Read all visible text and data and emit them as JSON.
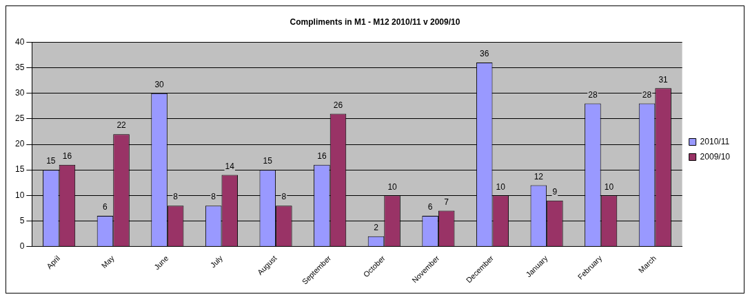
{
  "chart_data": {
    "type": "bar",
    "title": "Compliments in M1 - M12 2010/11 v 2009/10",
    "categories": [
      "April",
      "May",
      "June",
      "July",
      "August",
      "September",
      "October",
      "November",
      "December",
      "January",
      "February",
      "March"
    ],
    "series": [
      {
        "name": "2010/11",
        "color": "#9999ff",
        "values": [
          15,
          6,
          30,
          8,
          15,
          16,
          2,
          6,
          36,
          12,
          28,
          28
        ]
      },
      {
        "name": "2009/10",
        "color": "#993366",
        "values": [
          16,
          22,
          8,
          14,
          8,
          26,
          10,
          7,
          10,
          9,
          10,
          31
        ]
      }
    ],
    "ylim": [
      0,
      40
    ],
    "yticks": [
      0,
      5,
      10,
      15,
      20,
      25,
      30,
      35,
      40
    ],
    "grid": "y",
    "legend": "right",
    "data_labels": true
  }
}
